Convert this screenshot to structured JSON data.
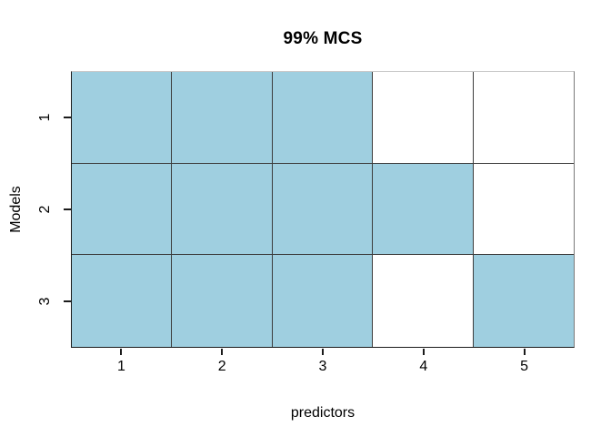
{
  "chart_data": {
    "type": "heatmap",
    "title": "99% MCS",
    "xlabel": "predictors",
    "ylabel": "Models",
    "x_ticks": [
      "1",
      "2",
      "3",
      "4",
      "5"
    ],
    "y_ticks": [
      "1",
      "2",
      "3"
    ],
    "series": [
      {
        "name": "1",
        "values": [
          1,
          1,
          1,
          0,
          0
        ]
      },
      {
        "name": "2",
        "values": [
          1,
          1,
          1,
          1,
          0
        ]
      },
      {
        "name": "3",
        "values": [
          1,
          1,
          1,
          0,
          1
        ]
      }
    ],
    "value_legend": "1 = model included in MCS (filled cell), 0 = excluded (white cell)",
    "fill_color": "#9FCFE0",
    "empty_color": "#FFFFFF",
    "grid": "on",
    "legend_position": "none",
    "x_range": [
      0.5,
      5.5
    ],
    "y_range": [
      0.5,
      3.5
    ]
  }
}
